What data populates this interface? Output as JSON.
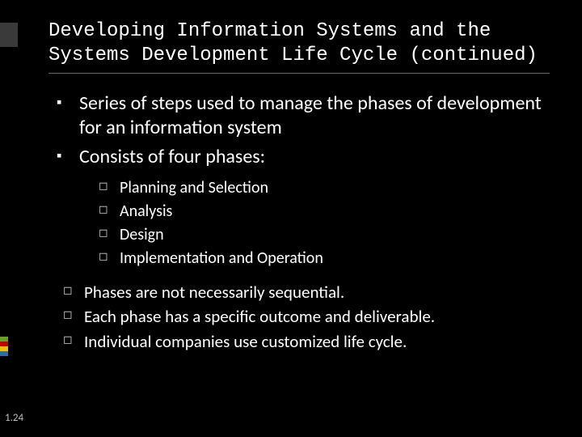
{
  "accent": {
    "top_block_color": "#3a3a3a",
    "stripe_colors": [
      "#6aa121",
      "#c00000",
      "#e6c400",
      "#2e6ca4"
    ]
  },
  "title": "Developing Information Systems and the Systems Development Life Cycle (continued)",
  "bullets_lvl1": [
    "Series of steps used to manage the phases of development for an information system",
    "Consists of four phases:"
  ],
  "phases": [
    "Planning and Selection",
    "Analysis",
    "Design",
    "Implementation and Operation"
  ],
  "notes": [
    "Phases are not necessarily sequential.",
    "Each phase has a specific outcome and deliverable.",
    "Individual companies use customized life cycle."
  ],
  "page_number": "1.24",
  "typography": {
    "title_font": "Consolas",
    "body_font": "Calibri",
    "title_size_pt": 24,
    "lvl1_size_pt": 24,
    "lvl2_size_pt": 20
  },
  "colors": {
    "background": "#000000",
    "text": "#ffffff",
    "bullet_hollow": "#cccccc",
    "page_num": "#bfbfbf",
    "title_underline": "#666666"
  }
}
